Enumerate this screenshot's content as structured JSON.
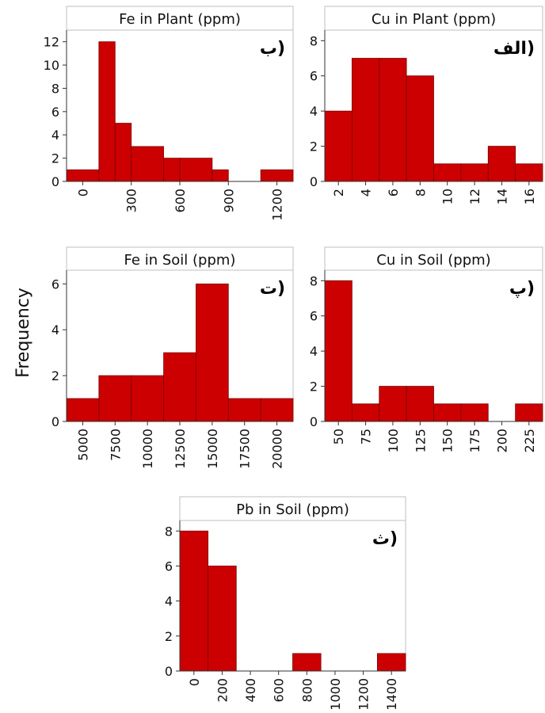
{
  "figure": {
    "ylabel": "Frequency"
  },
  "colors": {
    "bar_fill": "#cc0000",
    "bar_stroke": "#7a0000",
    "axis": "#333333",
    "frame": "#bfbfbf",
    "title_strip": "#ffffff"
  },
  "chart_data": [
    {
      "type": "bar",
      "title": "Fe in Plant (ppm)",
      "panel_tag": "ب)",
      "x_tick_labels": [
        "0",
        "300",
        "600",
        "900",
        "1200"
      ],
      "x_ticks": [
        0,
        300,
        600,
        900,
        1200
      ],
      "x_range": [
        -100,
        1300
      ],
      "y_tick_labels": [
        "0",
        "2",
        "4",
        "6",
        "8",
        "10",
        "12"
      ],
      "ylim": [
        0,
        13
      ],
      "bins": [
        {
          "from": -100,
          "to": 100,
          "count": 1
        },
        {
          "from": 100,
          "to": 200,
          "count": 12
        },
        {
          "from": 200,
          "to": 300,
          "count": 5
        },
        {
          "from": 300,
          "to": 500,
          "count": 3
        },
        {
          "from": 500,
          "to": 600,
          "count": 2
        },
        {
          "from": 600,
          "to": 800,
          "count": 2
        },
        {
          "from": 800,
          "to": 900,
          "count": 1
        },
        {
          "from": 1100,
          "to": 1300,
          "count": 1
        }
      ]
    },
    {
      "type": "bar",
      "title": "Cu in Plant (ppm)",
      "panel_tag": "الف)",
      "x_tick_labels": [
        "2",
        "4",
        "6",
        "8",
        "10",
        "12",
        "14",
        "16"
      ],
      "x_ticks": [
        2,
        4,
        6,
        8,
        10,
        12,
        14,
        16
      ],
      "x_range": [
        1,
        17
      ],
      "y_tick_labels": [
        "0",
        "2",
        "4",
        "6",
        "8"
      ],
      "ylim": [
        0,
        8.6
      ],
      "bins": [
        {
          "from": 1,
          "to": 3,
          "count": 4
        },
        {
          "from": 3,
          "to": 5,
          "count": 7
        },
        {
          "from": 5,
          "to": 7,
          "count": 7
        },
        {
          "from": 7,
          "to": 9,
          "count": 6
        },
        {
          "from": 9,
          "to": 11,
          "count": 1
        },
        {
          "from": 11,
          "to": 13,
          "count": 1
        },
        {
          "from": 13,
          "to": 15,
          "count": 2
        },
        {
          "from": 15,
          "to": 17,
          "count": 1
        }
      ]
    },
    {
      "type": "bar",
      "title": "Fe in Soil (ppm)",
      "panel_tag": "ت)",
      "x_tick_labels": [
        "5000",
        "7500",
        "10000",
        "12500",
        "15000",
        "17500",
        "20000"
      ],
      "x_ticks": [
        5000,
        7500,
        10000,
        12500,
        15000,
        17500,
        20000
      ],
      "x_range": [
        3750,
        21250
      ],
      "y_tick_labels": [
        "0",
        "2",
        "4",
        "6"
      ],
      "ylim": [
        0,
        6.6
      ],
      "bins": [
        {
          "from": 3750,
          "to": 6250,
          "count": 1
        },
        {
          "from": 6250,
          "to": 8750,
          "count": 2
        },
        {
          "from": 8750,
          "to": 11250,
          "count": 2
        },
        {
          "from": 11250,
          "to": 13750,
          "count": 3
        },
        {
          "from": 13750,
          "to": 16250,
          "count": 6
        },
        {
          "from": 16250,
          "to": 18750,
          "count": 1
        },
        {
          "from": 18750,
          "to": 21250,
          "count": 1
        }
      ]
    },
    {
      "type": "bar",
      "title": "Cu in Soil (ppm)",
      "panel_tag": "پ)",
      "x_tick_labels": [
        "50",
        "75",
        "100",
        "125",
        "150",
        "175",
        "200",
        "225"
      ],
      "x_ticks": [
        50,
        75,
        100,
        125,
        150,
        175,
        200,
        225
      ],
      "x_range": [
        37.5,
        237.5
      ],
      "y_tick_labels": [
        "0",
        "2",
        "4",
        "6",
        "8"
      ],
      "ylim": [
        0,
        8.6
      ],
      "bins": [
        {
          "from": 37.5,
          "to": 62.5,
          "count": 8
        },
        {
          "from": 62.5,
          "to": 87.5,
          "count": 1
        },
        {
          "from": 87.5,
          "to": 112.5,
          "count": 2
        },
        {
          "from": 112.5,
          "to": 137.5,
          "count": 2
        },
        {
          "from": 137.5,
          "to": 162.5,
          "count": 1
        },
        {
          "from": 162.5,
          "to": 187.5,
          "count": 1
        },
        {
          "from": 212.5,
          "to": 237.5,
          "count": 1
        }
      ]
    },
    {
      "type": "bar",
      "title": "Pb in Soil (ppm)",
      "panel_tag": "ث)",
      "x_tick_labels": [
        "0",
        "200",
        "400",
        "600",
        "800",
        "1000",
        "1200",
        "1400"
      ],
      "x_ticks": [
        0,
        200,
        400,
        600,
        800,
        1000,
        1200,
        1400
      ],
      "x_range": [
        -100,
        1500
      ],
      "y_tick_labels": [
        "0",
        "2",
        "4",
        "6",
        "8"
      ],
      "ylim": [
        0,
        8.6
      ],
      "bins": [
        {
          "from": -100,
          "to": 100,
          "count": 8
        },
        {
          "from": 100,
          "to": 300,
          "count": 6
        },
        {
          "from": 700,
          "to": 900,
          "count": 1
        },
        {
          "from": 1300,
          "to": 1500,
          "count": 1
        }
      ]
    }
  ]
}
